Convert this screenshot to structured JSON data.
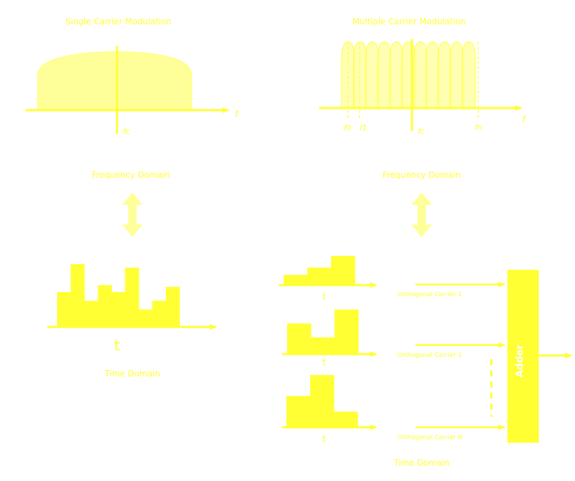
{
  "colors": {
    "stroke": "#ffff33",
    "fill_strong": "#ffff33",
    "fill_soft": "#ffff99",
    "arrow_soft": "#ffff99",
    "adder_text": "#ffffff"
  },
  "single_carrier": {
    "title": "Single Carrier Modulation",
    "axis_label": "f",
    "center_label": "fc",
    "freq_domain_label": "Frequency Domain",
    "time_label": "t",
    "time_domain_label": "Time Domain",
    "bar_heights": [
      1,
      1.8,
      0.75,
      1.2,
      1,
      1.7,
      0.5,
      0.75,
      1.15
    ]
  },
  "multi_carrier": {
    "title": "Multiple Carrier Modulation",
    "axis_label": "f",
    "f0_label": "f0",
    "f1_label": "f1",
    "fc_label": "fc",
    "fn_label": "fn",
    "subcarrier_count": 11,
    "freq_domain_label": "Frequency Domain",
    "time_domain_label": "Time Domain",
    "channels": [
      {
        "time_label": "t",
        "carrier_label": "Orthogonal Carrier 1",
        "steps": [
          0.35,
          0.6,
          1.0
        ]
      },
      {
        "time_label": "t",
        "carrier_label": "Orthogonal Carrier 2",
        "steps": [
          0.55,
          0.3,
          0.8
        ]
      },
      {
        "time_label": "t",
        "carrier_label": "Orthogonal Carrier N",
        "steps": [
          0.6,
          1.0,
          0.3
        ]
      }
    ],
    "adder_label": "Adder"
  }
}
